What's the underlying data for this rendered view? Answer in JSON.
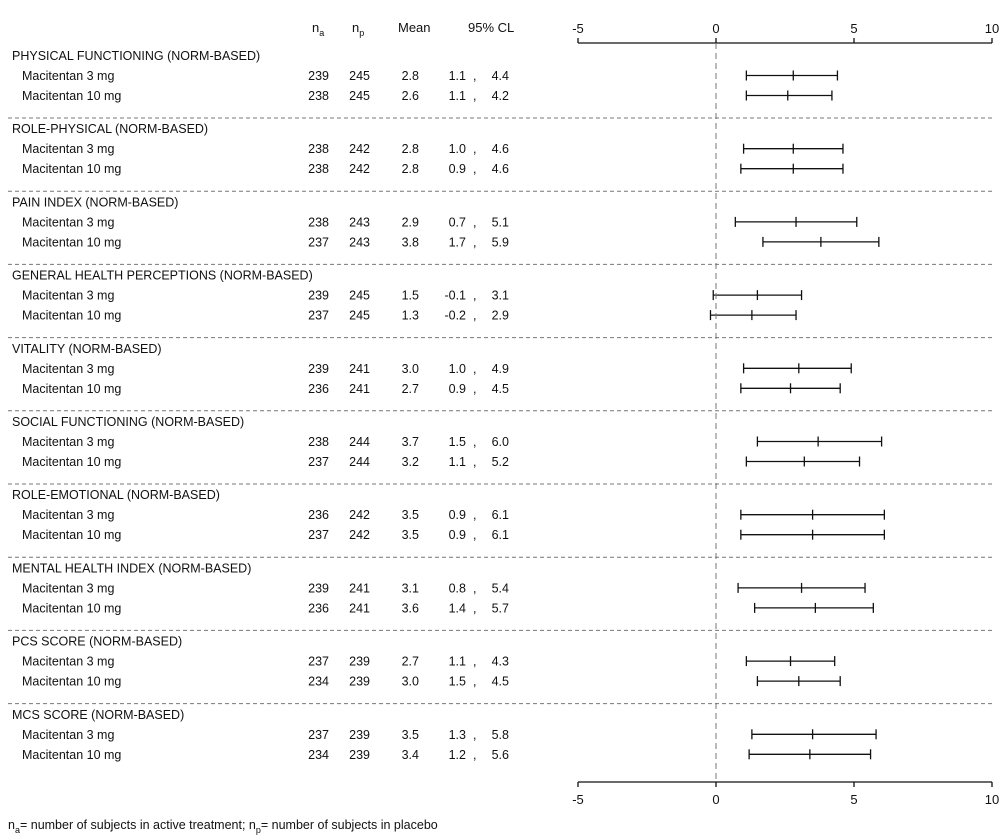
{
  "header": {
    "na_label": "n",
    "na_sub": "a",
    "np_label": "n",
    "np_sub": "p",
    "mean_label": "Mean",
    "ci_label": "95% CL"
  },
  "footnote": {
    "part1": "n",
    "sub1": "a",
    "part2": "= number of subjects in active treatment; n",
    "sub2": "p",
    "part3": "= number of subjects in placebo"
  },
  "chart_data": {
    "type": "forest",
    "xlim": [
      -5,
      10
    ],
    "xticks": [
      -5,
      0,
      5,
      10
    ],
    "reference_line": 0,
    "groups": [
      {
        "name": "PHYSICAL FUNCTIONING (NORM-BASED)",
        "rows": [
          {
            "label": "Macitentan 3 mg",
            "na": 239,
            "np": 245,
            "mean": 2.8,
            "lo": 1.1,
            "hi": 4.4
          },
          {
            "label": "Macitentan 10 mg",
            "na": 238,
            "np": 245,
            "mean": 2.6,
            "lo": 1.1,
            "hi": 4.2
          }
        ]
      },
      {
        "name": "ROLE-PHYSICAL (NORM-BASED)",
        "rows": [
          {
            "label": "Macitentan 3 mg",
            "na": 238,
            "np": 242,
            "mean": 2.8,
            "lo": 1.0,
            "hi": 4.6
          },
          {
            "label": "Macitentan 10 mg",
            "na": 238,
            "np": 242,
            "mean": 2.8,
            "lo": 0.9,
            "hi": 4.6
          }
        ]
      },
      {
        "name": "PAIN INDEX (NORM-BASED)",
        "rows": [
          {
            "label": "Macitentan 3 mg",
            "na": 238,
            "np": 243,
            "mean": 2.9,
            "lo": 0.7,
            "hi": 5.1
          },
          {
            "label": "Macitentan 10 mg",
            "na": 237,
            "np": 243,
            "mean": 3.8,
            "lo": 1.7,
            "hi": 5.9
          }
        ]
      },
      {
        "name": "GENERAL HEALTH PERCEPTIONS (NORM-BASED)",
        "rows": [
          {
            "label": "Macitentan 3 mg",
            "na": 239,
            "np": 245,
            "mean": 1.5,
            "lo": -0.1,
            "hi": 3.1
          },
          {
            "label": "Macitentan 10 mg",
            "na": 237,
            "np": 245,
            "mean": 1.3,
            "lo": -0.2,
            "hi": 2.9
          }
        ]
      },
      {
        "name": "VITALITY (NORM-BASED)",
        "rows": [
          {
            "label": "Macitentan 3 mg",
            "na": 239,
            "np": 241,
            "mean": 3.0,
            "lo": 1.0,
            "hi": 4.9
          },
          {
            "label": "Macitentan 10 mg",
            "na": 236,
            "np": 241,
            "mean": 2.7,
            "lo": 0.9,
            "hi": 4.5
          }
        ]
      },
      {
        "name": "SOCIAL FUNCTIONING (NORM-BASED)",
        "rows": [
          {
            "label": "Macitentan 3 mg",
            "na": 238,
            "np": 244,
            "mean": 3.7,
            "lo": 1.5,
            "hi": 6.0
          },
          {
            "label": "Macitentan 10 mg",
            "na": 237,
            "np": 244,
            "mean": 3.2,
            "lo": 1.1,
            "hi": 5.2
          }
        ]
      },
      {
        "name": "ROLE-EMOTIONAL (NORM-BASED)",
        "rows": [
          {
            "label": "Macitentan 3 mg",
            "na": 236,
            "np": 242,
            "mean": 3.5,
            "lo": 0.9,
            "hi": 6.1
          },
          {
            "label": "Macitentan 10 mg",
            "na": 237,
            "np": 242,
            "mean": 3.5,
            "lo": 0.9,
            "hi": 6.1
          }
        ]
      },
      {
        "name": "MENTAL HEALTH INDEX (NORM-BASED)",
        "rows": [
          {
            "label": "Macitentan 3 mg",
            "na": 239,
            "np": 241,
            "mean": 3.1,
            "lo": 0.8,
            "hi": 5.4
          },
          {
            "label": "Macitentan 10 mg",
            "na": 236,
            "np": 241,
            "mean": 3.6,
            "lo": 1.4,
            "hi": 5.7
          }
        ]
      },
      {
        "name": "PCS SCORE (NORM-BASED)",
        "rows": [
          {
            "label": "Macitentan 3 mg",
            "na": 237,
            "np": 239,
            "mean": 2.7,
            "lo": 1.1,
            "hi": 4.3
          },
          {
            "label": "Macitentan 10 mg",
            "na": 234,
            "np": 239,
            "mean": 3.0,
            "lo": 1.5,
            "hi": 4.5
          }
        ]
      },
      {
        "name": "MCS SCORE (NORM-BASED)",
        "rows": [
          {
            "label": "Macitentan 3 mg",
            "na": 237,
            "np": 239,
            "mean": 3.5,
            "lo": 1.3,
            "hi": 5.8
          },
          {
            "label": "Macitentan 10 mg",
            "na": 234,
            "np": 239,
            "mean": 3.4,
            "lo": 1.2,
            "hi": 5.6
          }
        ]
      }
    ]
  }
}
